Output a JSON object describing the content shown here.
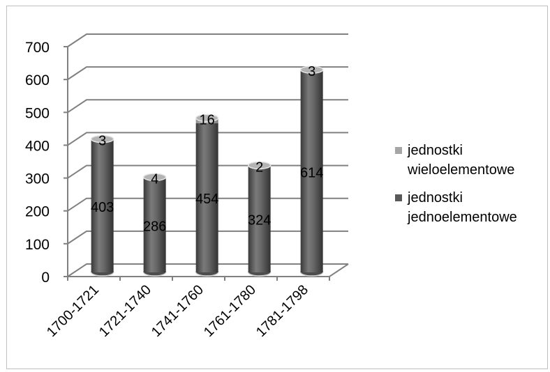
{
  "chart_data": {
    "type": "bar",
    "categories": [
      "1700-1721",
      "1721-1740",
      "1741-1760",
      "1761-1780",
      "1781-1798"
    ],
    "series": [
      {
        "name": "jednostki jednoelementowe",
        "values": [
          403,
          286,
          454,
          324,
          614
        ],
        "color": "#595959"
      },
      {
        "name": "jednostki wieloelementowe",
        "values": [
          3,
          4,
          16,
          2,
          3
        ],
        "color": "#a6a6a6"
      }
    ],
    "stacked": true,
    "ylim": [
      0,
      700
    ],
    "yticks": [
      0,
      100,
      200,
      300,
      400,
      500,
      600,
      700
    ],
    "grid": true,
    "legend_position": "right",
    "style": "3d-cylinder",
    "colors": {
      "grid": "#808080",
      "top_cap": "#bfbfbf"
    }
  },
  "legend": {
    "item1": "jednostki wieloelementowe",
    "item2": "jednostki jednoelementowe"
  }
}
